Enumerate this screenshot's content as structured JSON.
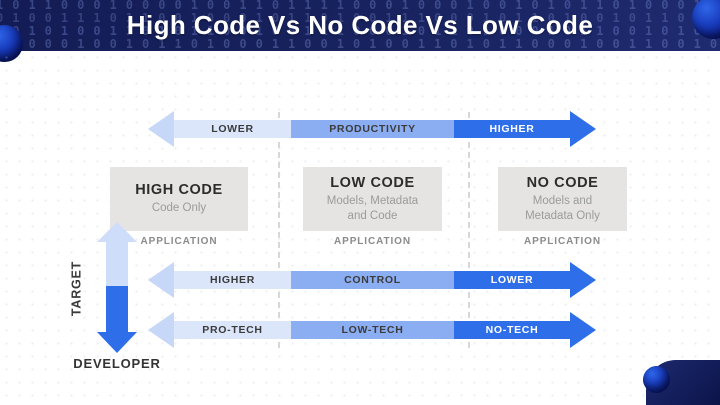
{
  "header": {
    "title": "High Code Vs No Code Vs Low Code",
    "binary_rows": [
      "101100010000100110111100010001001010110100011010",
      "010011101100100010110100111000101101001011000110",
      "001010011010110010011100010110100010110010100101",
      "110001001011010001100101001101011000100110010011"
    ]
  },
  "arrows": [
    {
      "name": "productivity-axis",
      "segments": [
        {
          "label": "LOWER",
          "tone": "light"
        },
        {
          "label": "PRODUCTIVITY",
          "tone": "medium"
        },
        {
          "label": "HIGHER",
          "tone": "dark"
        }
      ]
    },
    {
      "name": "control-axis",
      "segments": [
        {
          "label": "HIGHER",
          "tone": "light"
        },
        {
          "label": "CONTROL",
          "tone": "medium"
        },
        {
          "label": "LOWER",
          "tone": "dark"
        }
      ]
    },
    {
      "name": "tech-axis",
      "segments": [
        {
          "label": "PRO-TECH",
          "tone": "light"
        },
        {
          "label": "LOW-TECH",
          "tone": "medium"
        },
        {
          "label": "NO-TECH",
          "tone": "dark"
        }
      ]
    }
  ],
  "boxes": [
    {
      "title": "HIGH CODE",
      "subtitle": "Code Only",
      "caption": "APPLICATION"
    },
    {
      "title": "LOW CODE",
      "subtitle": "Models, Metadata\nand Code",
      "caption": "APPLICATION"
    },
    {
      "title": "NO CODE",
      "subtitle": "Models and\nMetadata Only",
      "caption": "APPLICATION"
    }
  ],
  "axis": {
    "vertical_label": "TARGET",
    "bottom_label": "DEVELOPER"
  },
  "colors": {
    "header-navy-1": "#131c55",
    "header-navy-2": "#1f2b70",
    "arrow-dark": "#2e6fe9",
    "arrow-medium": "#8badf1",
    "arrow-light": "#dbe6fb",
    "arrow-light-head": "#c6d7f8",
    "vertical-light": "#cdddfa",
    "box-gray": "#e5e4e3"
  }
}
